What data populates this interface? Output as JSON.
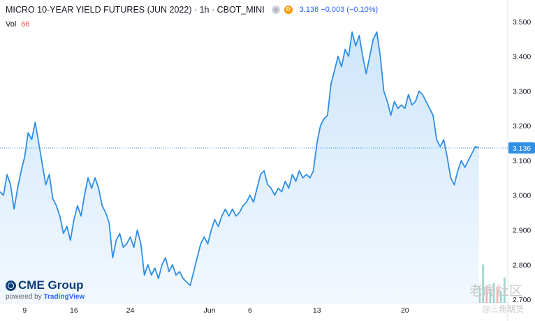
{
  "header": {
    "symbol": "MICRO 10-YEAR YIELD FUTURES (JUN 2022) · 1h · CBOT_MINI",
    "badge": "D",
    "price_change": "3.136  −0.003 (−0.10%)"
  },
  "volume": {
    "label": "Vol",
    "value": "66"
  },
  "branding": {
    "logo_text": "CME Group",
    "powered_by": "powered by",
    "powered_brand": "TradingView"
  },
  "watermark": {
    "main": "老虎社区",
    "sub": "@三角期货"
  },
  "colors": {
    "line": "#2f8ee6",
    "fill_top": "#cfe6fb",
    "fill_bottom": "#f2f8fe",
    "last_price": "#2f8ee6",
    "vol_up": "#26a69a",
    "vol_down": "#ef5350"
  },
  "chart_data": {
    "type": "area",
    "title": "MICRO 10-YEAR YIELD FUTURES (JUN 2022)",
    "interval": "1h",
    "x_ticks": [
      "9",
      "16",
      "24",
      "Jun",
      "6",
      "13",
      "20"
    ],
    "y_ticks": [
      "2.700",
      "2.800",
      "2.900",
      "3.000",
      "3.100",
      "3.200",
      "3.300",
      "3.400",
      "3.500"
    ],
    "ylim": [
      2.69,
      3.53
    ],
    "last_price": "3.136",
    "grid": false,
    "points": [
      [
        0,
        3.01
      ],
      [
        0.2,
        3.0
      ],
      [
        0.4,
        3.06
      ],
      [
        0.6,
        3.03
      ],
      [
        0.8,
        2.96
      ],
      [
        1.0,
        3.02
      ],
      [
        1.2,
        3.07
      ],
      [
        1.4,
        3.11
      ],
      [
        1.6,
        3.18
      ],
      [
        1.8,
        3.16
      ],
      [
        2.0,
        3.21
      ],
      [
        2.2,
        3.15
      ],
      [
        2.4,
        3.09
      ],
      [
        2.6,
        3.03
      ],
      [
        2.8,
        3.06
      ],
      [
        3.0,
        2.99
      ],
      [
        3.2,
        2.97
      ],
      [
        3.4,
        2.94
      ],
      [
        3.6,
        2.89
      ],
      [
        3.8,
        2.91
      ],
      [
        4.0,
        2.87
      ],
      [
        4.2,
        2.93
      ],
      [
        4.4,
        2.97
      ],
      [
        4.6,
        2.94
      ],
      [
        4.8,
        3.0
      ],
      [
        5.0,
        3.05
      ],
      [
        5.2,
        3.02
      ],
      [
        5.4,
        3.05
      ],
      [
        5.6,
        3.02
      ],
      [
        5.8,
        2.97
      ],
      [
        6.0,
        2.95
      ],
      [
        6.2,
        2.92
      ],
      [
        6.4,
        2.82
      ],
      [
        6.6,
        2.87
      ],
      [
        6.8,
        2.89
      ],
      [
        7.0,
        2.85
      ],
      [
        7.2,
        2.86
      ],
      [
        7.4,
        2.88
      ],
      [
        7.6,
        2.85
      ],
      [
        7.8,
        2.9
      ],
      [
        8.0,
        2.86
      ],
      [
        8.2,
        2.77
      ],
      [
        8.4,
        2.8
      ],
      [
        8.6,
        2.77
      ],
      [
        8.8,
        2.79
      ],
      [
        9.0,
        2.76
      ],
      [
        9.2,
        2.8
      ],
      [
        9.4,
        2.82
      ],
      [
        9.6,
        2.78
      ],
      [
        9.8,
        2.8
      ],
      [
        10.0,
        2.77
      ],
      [
        10.2,
        2.78
      ],
      [
        10.4,
        2.76
      ],
      [
        10.6,
        2.75
      ],
      [
        10.8,
        2.74
      ],
      [
        11.0,
        2.78
      ],
      [
        11.2,
        2.82
      ],
      [
        11.4,
        2.86
      ],
      [
        11.6,
        2.88
      ],
      [
        11.8,
        2.86
      ],
      [
        12.0,
        2.9
      ],
      [
        12.2,
        2.93
      ],
      [
        12.4,
        2.91
      ],
      [
        12.6,
        2.94
      ],
      [
        12.8,
        2.96
      ],
      [
        13.0,
        2.94
      ],
      [
        13.2,
        2.96
      ],
      [
        13.4,
        2.94
      ],
      [
        13.6,
        2.95
      ],
      [
        13.8,
        2.97
      ],
      [
        14.0,
        2.98
      ],
      [
        14.2,
        3.0
      ],
      [
        14.4,
        2.98
      ],
      [
        14.6,
        3.02
      ],
      [
        14.8,
        3.06
      ],
      [
        15.0,
        3.07
      ],
      [
        15.2,
        3.03
      ],
      [
        15.4,
        3.02
      ],
      [
        15.6,
        3.0
      ],
      [
        15.8,
        3.02
      ],
      [
        16.0,
        3.01
      ],
      [
        16.2,
        3.04
      ],
      [
        16.4,
        3.02
      ],
      [
        16.6,
        3.06
      ],
      [
        16.8,
        3.04
      ],
      [
        17.0,
        3.07
      ],
      [
        17.2,
        3.05
      ],
      [
        17.4,
        3.06
      ],
      [
        17.6,
        3.05
      ],
      [
        17.8,
        3.07
      ],
      [
        18.0,
        3.15
      ],
      [
        18.2,
        3.2
      ],
      [
        18.4,
        3.22
      ],
      [
        18.6,
        3.23
      ],
      [
        18.8,
        3.32
      ],
      [
        19.0,
        3.36
      ],
      [
        19.2,
        3.4
      ],
      [
        19.4,
        3.37
      ],
      [
        19.6,
        3.42
      ],
      [
        19.8,
        3.4
      ],
      [
        20.0,
        3.47
      ],
      [
        20.2,
        3.43
      ],
      [
        20.4,
        3.46
      ],
      [
        20.6,
        3.4
      ],
      [
        20.8,
        3.35
      ],
      [
        21.0,
        3.4
      ],
      [
        21.2,
        3.45
      ],
      [
        21.4,
        3.47
      ],
      [
        21.6,
        3.4
      ],
      [
        21.8,
        3.3
      ],
      [
        22.0,
        3.27
      ],
      [
        22.2,
        3.23
      ],
      [
        22.4,
        3.27
      ],
      [
        22.6,
        3.25
      ],
      [
        22.8,
        3.26
      ],
      [
        23.0,
        3.25
      ],
      [
        23.2,
        3.29
      ],
      [
        23.4,
        3.26
      ],
      [
        23.6,
        3.27
      ],
      [
        23.8,
        3.3
      ],
      [
        24.0,
        3.29
      ],
      [
        24.2,
        3.27
      ],
      [
        24.4,
        3.25
      ],
      [
        24.6,
        3.23
      ],
      [
        24.8,
        3.16
      ],
      [
        25.0,
        3.14
      ],
      [
        25.2,
        3.16
      ],
      [
        25.4,
        3.11
      ],
      [
        25.6,
        3.05
      ],
      [
        25.8,
        3.03
      ],
      [
        26.0,
        3.07
      ],
      [
        26.2,
        3.1
      ],
      [
        26.4,
        3.08
      ],
      [
        26.6,
        3.1
      ],
      [
        26.8,
        3.12
      ],
      [
        27.0,
        3.14
      ],
      [
        27.2,
        3.136
      ]
    ],
    "x_tick_positions": [
      1.4,
      4.2,
      7.4,
      11.9,
      14.2,
      18.0,
      23.0
    ],
    "volume": {
      "max": 200,
      "values": [
        4,
        3,
        6,
        8,
        4,
        5,
        9,
        12,
        6,
        14,
        10,
        5,
        7,
        9,
        4,
        6,
        11,
        8,
        5,
        7,
        9,
        12,
        6,
        5,
        4,
        8,
        10,
        7,
        6,
        9,
        5,
        12,
        8,
        4,
        6,
        15,
        9,
        7,
        10,
        8,
        6,
        5,
        9,
        14,
        11,
        7,
        9,
        6,
        12,
        18,
        8,
        10,
        14,
        22,
        9,
        12,
        30,
        16,
        11,
        9,
        24,
        18,
        12,
        28,
        15,
        10,
        36,
        20,
        14,
        26,
        40,
        22,
        18,
        30,
        16,
        25,
        45,
        20,
        28,
        34,
        18,
        40,
        22,
        30,
        26,
        60,
        32,
        24,
        38,
        28,
        44,
        30,
        70,
        36,
        26,
        190,
        50,
        40,
        34,
        65,
        30,
        28,
        120,
        42,
        60,
        36,
        80,
        45,
        30,
        90,
        40,
        55,
        35,
        100,
        48,
        30,
        60,
        38,
        42,
        52,
        34,
        70,
        40,
        28,
        56,
        32,
        80,
        36,
        44,
        30,
        48,
        26,
        62,
        34,
        40,
        100,
        46,
        36,
        52,
        42,
        30,
        66
      ]
    }
  }
}
